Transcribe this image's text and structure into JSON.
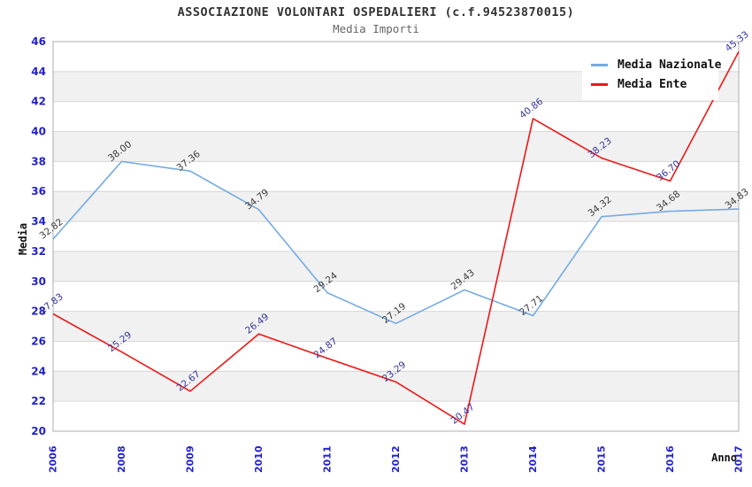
{
  "header": {
    "title": "ASSOCIAZIONE VOLONTARI OSPEDALIERI (c.f.94523870015)",
    "subtitle": "Media Importi"
  },
  "chart_data": {
    "type": "line",
    "x": [
      "2006",
      "2008",
      "2009",
      "2010",
      "2011",
      "2012",
      "2013",
      "2014",
      "2015",
      "2016",
      "2017"
    ],
    "series": [
      {
        "name": "Media Nazionale",
        "color": "#74abe2",
        "label_color": "#3c3c3c",
        "values": [
          32.82,
          38.0,
          37.36,
          34.79,
          29.24,
          27.19,
          29.43,
          27.71,
          34.32,
          34.68,
          34.83
        ]
      },
      {
        "name": "Media Ente",
        "color": "#ee1717",
        "label_color": "#34349b",
        "values": [
          27.83,
          25.29,
          22.67,
          26.49,
          24.87,
          23.29,
          20.47,
          40.86,
          38.23,
          36.7,
          45.33
        ]
      }
    ],
    "xlabel": "Anno",
    "ylabel": "Media",
    "ylim": [
      20,
      46
    ],
    "ytick_step": 2,
    "grid": true,
    "legend_position": "top-right",
    "band_colors": [
      "#ffffff",
      "#f1f1f1"
    ],
    "grid_color": "#d6d6d6",
    "border_color": "#adadad",
    "tick_color": "#2222cc",
    "value_label_rotation_deg": -38,
    "tick_label_rotation_deg": -90
  }
}
